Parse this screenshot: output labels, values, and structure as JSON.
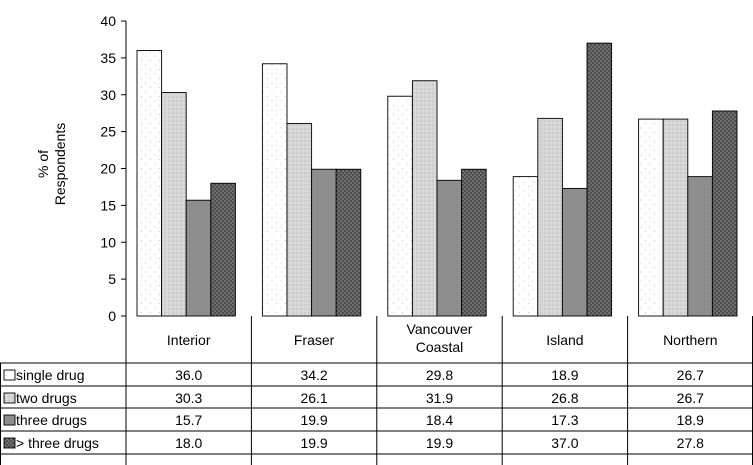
{
  "chart_data": {
    "type": "bar",
    "ylabel": "% of Respondents",
    "ylabel_lines": [
      "% of",
      "Respondents"
    ],
    "ylim": [
      0,
      40
    ],
    "yticks": [
      "0",
      "5",
      "10",
      "15",
      "20",
      "25",
      "30",
      "35",
      "40"
    ],
    "categories": [
      "Interior",
      "Fraser",
      "Vancouver Coastal",
      "Island",
      "Northern"
    ],
    "category_lines": [
      [
        "Interior"
      ],
      [
        "Fraser"
      ],
      [
        "Vancouver",
        "Coastal"
      ],
      [
        "Island"
      ],
      [
        "Northern"
      ]
    ],
    "grid": false,
    "legend": "data table below the chart",
    "series": [
      {
        "name": "single drug",
        "values": [
          36.0,
          34.2,
          29.8,
          18.9,
          26.7
        ],
        "labels": [
          "36.0",
          "34.2",
          "29.8",
          "18.9",
          "26.7"
        ],
        "pattern": "dots-white",
        "color": "#ffffff"
      },
      {
        "name": "two drugs",
        "values": [
          30.3,
          26.1,
          31.9,
          26.8,
          26.7
        ],
        "labels": [
          "30.3",
          "26.1",
          "31.9",
          "26.8",
          "26.7"
        ],
        "pattern": "dots-light",
        "color": "#cfcfcf"
      },
      {
        "name": "three drugs",
        "values": [
          15.7,
          19.9,
          18.4,
          17.3,
          18.9
        ],
        "labels": [
          "15.7",
          "19.9",
          "18.4",
          "17.3",
          "18.9"
        ],
        "pattern": "solid-mid",
        "color": "#8f8f8f"
      },
      {
        "name": "> three drugs",
        "values": [
          18.0,
          19.9,
          19.9,
          37.0,
          27.8
        ],
        "labels": [
          "18.0",
          "19.9",
          "19.9",
          "37.0",
          "27.8"
        ],
        "pattern": "dots-dark",
        "color": "#5e5e5e"
      }
    ]
  }
}
